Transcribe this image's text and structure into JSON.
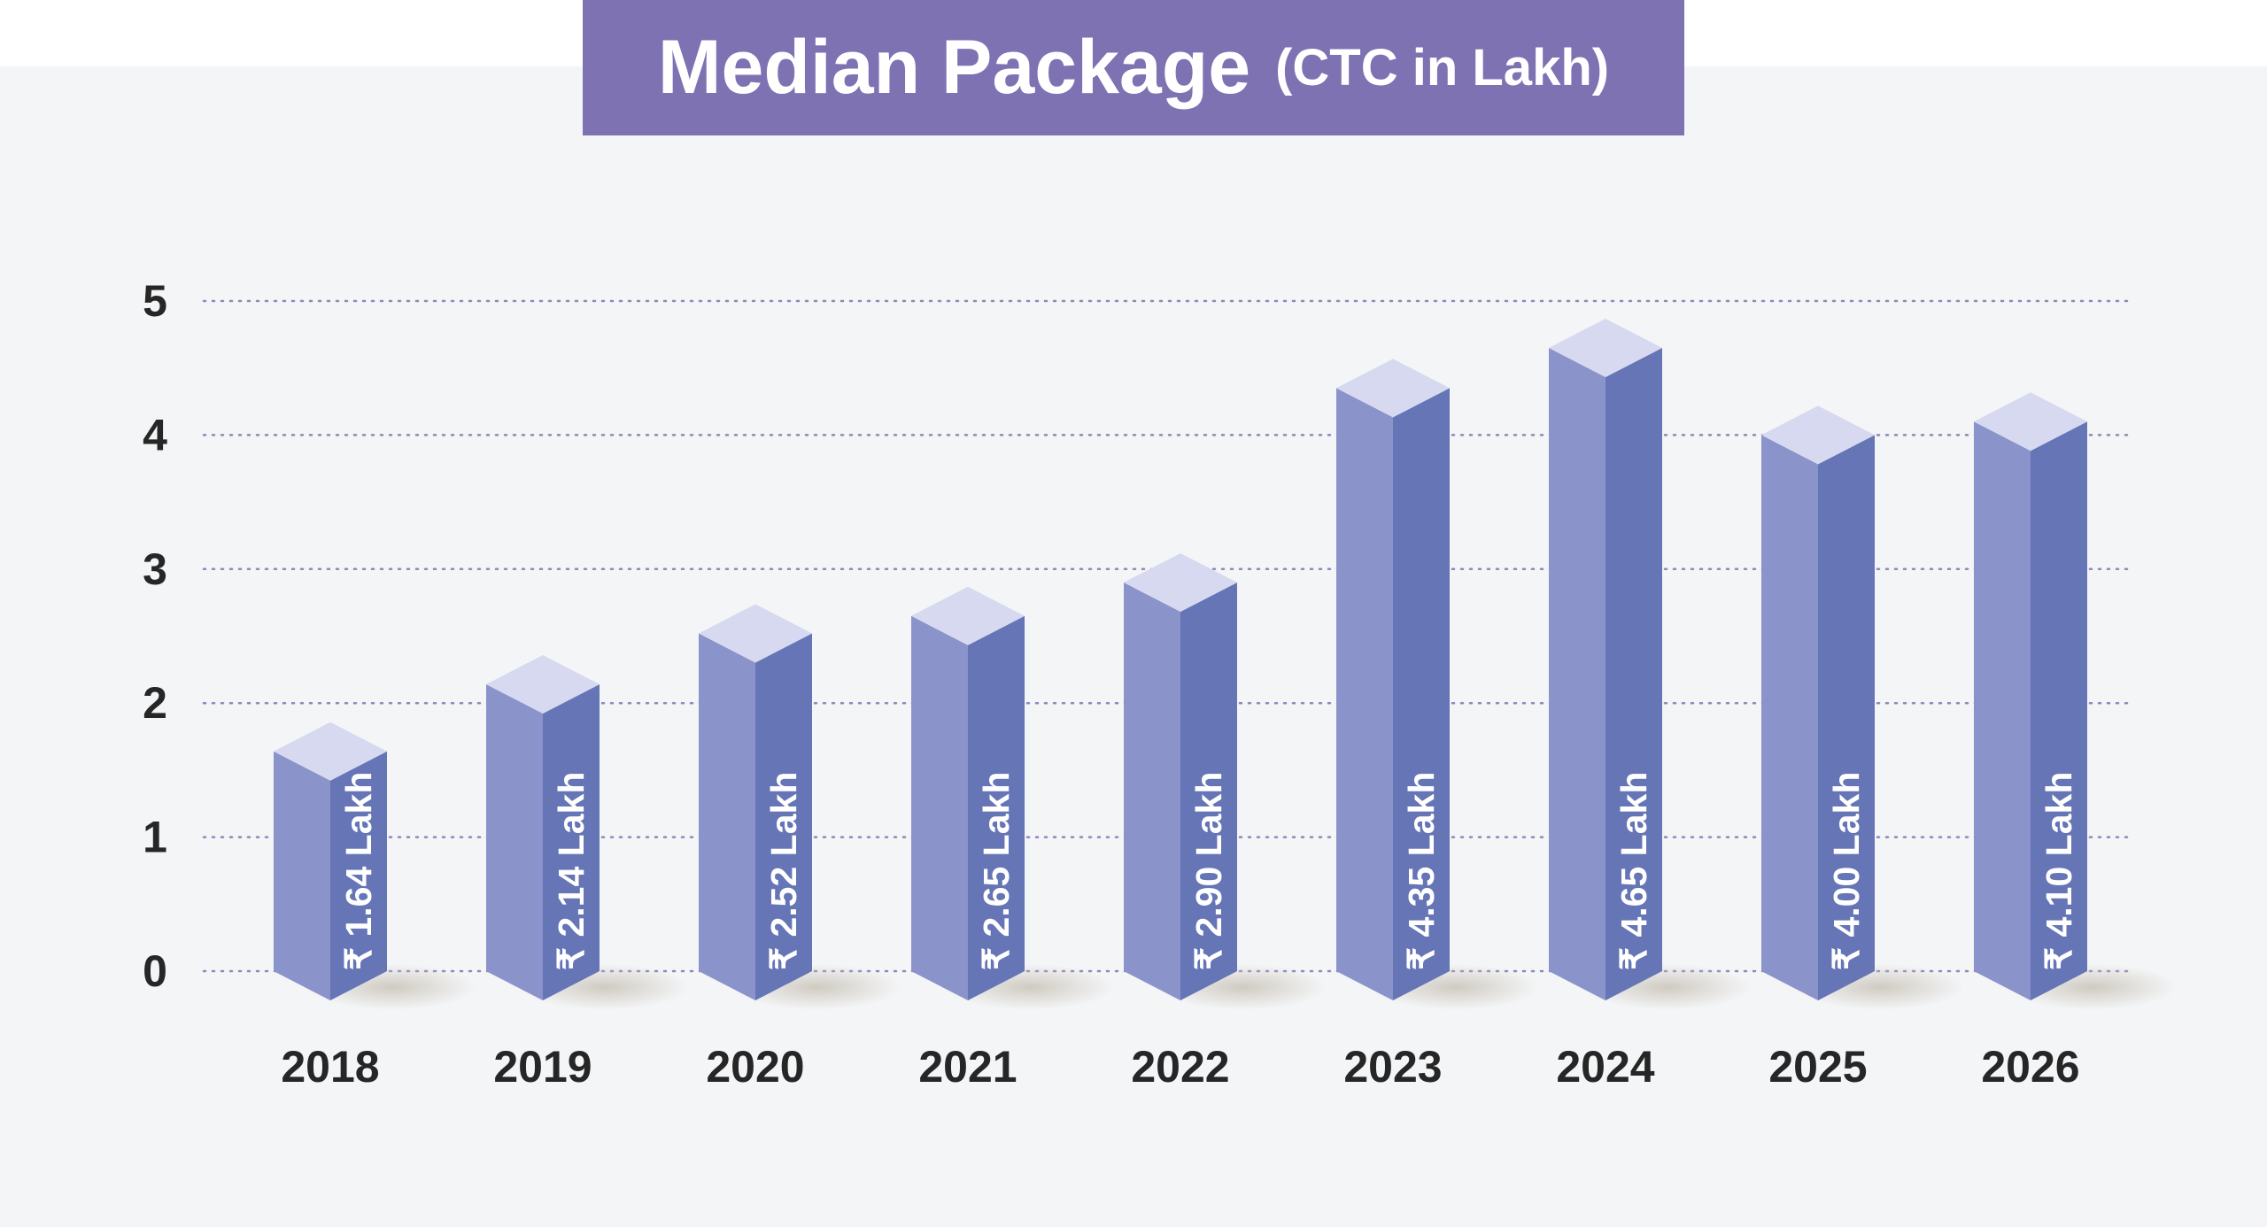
{
  "title": "Median Package",
  "subtitle": "(CTC in Lakh)",
  "colors": {
    "banner": "#7e72b3",
    "background": "#f4f5f7",
    "bar_front": "#8a93ca",
    "bar_side": "#6575b6",
    "bar_top": "#d6d9ef",
    "grid": "#8d88ba",
    "axis_text": "#262626",
    "label_text": "#ffffff"
  },
  "chart_data": {
    "type": "bar",
    "title": "Median Package",
    "subtitle": "(CTC in Lakh)",
    "categories": [
      "2018",
      "2019",
      "2020",
      "2021",
      "2022",
      "2023",
      "2024",
      "2025",
      "2026"
    ],
    "values": [
      1.64,
      2.14,
      2.52,
      2.65,
      2.9,
      4.35,
      4.65,
      4.0,
      4.1
    ],
    "value_labels": [
      "₹ 1.64 Lakh",
      "₹ 2.14 Lakh",
      "₹ 2.52 Lakh",
      "₹ 2.65 Lakh",
      "₹ 2.90 Lakh",
      "₹ 4.35 Lakh",
      "₹ 4.65 Lakh",
      "₹ 4.00 Lakh",
      "₹ 4.10 Lakh"
    ],
    "y_ticks": [
      "0",
      "1",
      "2",
      "3",
      "4",
      "5"
    ],
    "ylim": [
      0,
      5
    ],
    "xlabel": "",
    "ylabel": "",
    "grid": true,
    "grid_style": "dotted",
    "style": "3d-isometric-bars",
    "legend": "none"
  }
}
